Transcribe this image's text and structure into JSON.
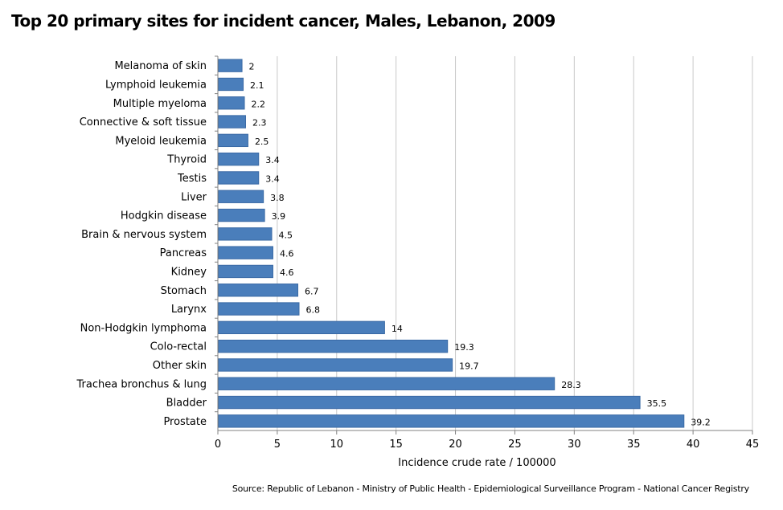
{
  "title": "Top 20 primary sites for incident cancer, Males, Lebanon, 2009",
  "source": "Source:  Republic of Lebanon  - Ministry of Public Health - Epidemiological Surveillance Program - National Cancer Registry",
  "colors": {
    "bar": "#4a7ebb",
    "bar_edge": "#3a6aa5",
    "grid": "#c8c8c8",
    "axis": "#808080"
  },
  "chart_data": {
    "type": "bar",
    "orientation": "horizontal",
    "title": "Top 20 primary sites for incident cancer, Males, Lebanon, 2009",
    "xlabel": "Incidence crude rate / 100000",
    "ylabel": "",
    "xlim": [
      0,
      45
    ],
    "xticks": [
      "0",
      "5",
      "10",
      "15",
      "20",
      "25",
      "30",
      "35",
      "40",
      "45"
    ],
    "grid": true,
    "categories": [
      "Melanoma of skin",
      "Lymphoid leukemia",
      "Multiple myeloma",
      "Connective & soft tissue",
      "Myeloid leukemia",
      "Thyroid",
      "Testis",
      "Liver",
      "Hodgkin disease",
      "Brain & nervous system",
      "Pancreas",
      "Kidney",
      "Stomach",
      "Larynx",
      "Non-Hodgkin lymphoma",
      "Colo-rectal",
      "Other skin",
      "Trachea bronchus & lung",
      "Bladder",
      "Prostate"
    ],
    "values": [
      2,
      2.1,
      2.2,
      2.3,
      2.5,
      3.4,
      3.4,
      3.8,
      3.9,
      4.5,
      4.6,
      4.6,
      6.7,
      6.8,
      14,
      19.3,
      19.7,
      28.3,
      35.5,
      39.2
    ],
    "value_labels": [
      "2",
      "2.1",
      "2.2",
      "2.3",
      "2.5",
      "3.4",
      "3.4",
      "3.8",
      "3.9",
      "4.5",
      "4.6",
      "4.6",
      "6.7",
      "6.8",
      "14",
      "19.3",
      "19.7",
      "28.3",
      "35.5",
      "39.2"
    ]
  }
}
